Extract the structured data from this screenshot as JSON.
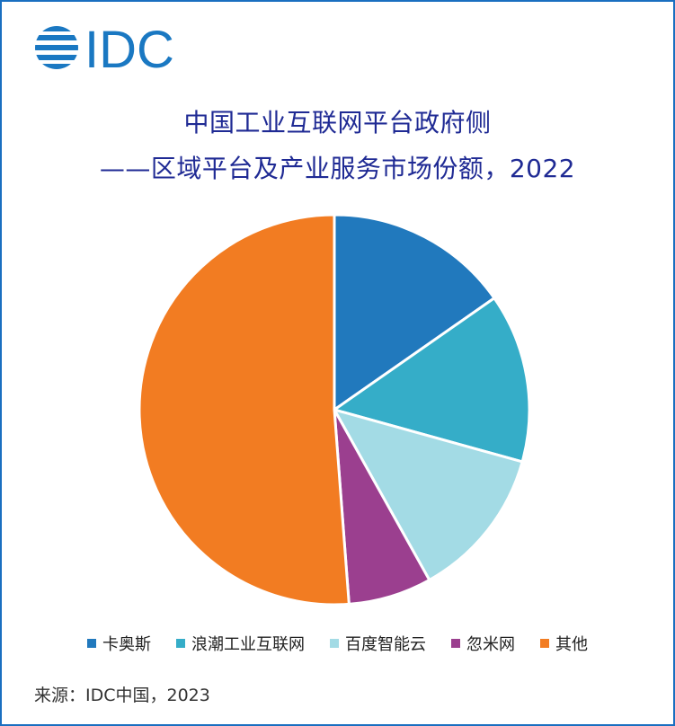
{
  "logo": {
    "text": "IDC",
    "color": "#1a78c2"
  },
  "chart_data": {
    "type": "pie",
    "title_line1": "中国工业互联网平台政府侧",
    "title_line2": "——区域平台及产业服务市场份额，2022",
    "categories": [
      "卡奥斯",
      "浪潮工业互联网",
      "百度智能云",
      "忽米网",
      "其他"
    ],
    "values": [
      15.3,
      14.0,
      12.6,
      6.9,
      51.2
    ],
    "unit": "%",
    "colors": [
      "#2179bd",
      "#35adc8",
      "#a3dbe5",
      "#9b3f8f",
      "#f27c22"
    ],
    "legend_position": "bottom",
    "start_angle_deg": 0,
    "direction": "clockwise"
  },
  "source": "来源：IDC中国，2023"
}
